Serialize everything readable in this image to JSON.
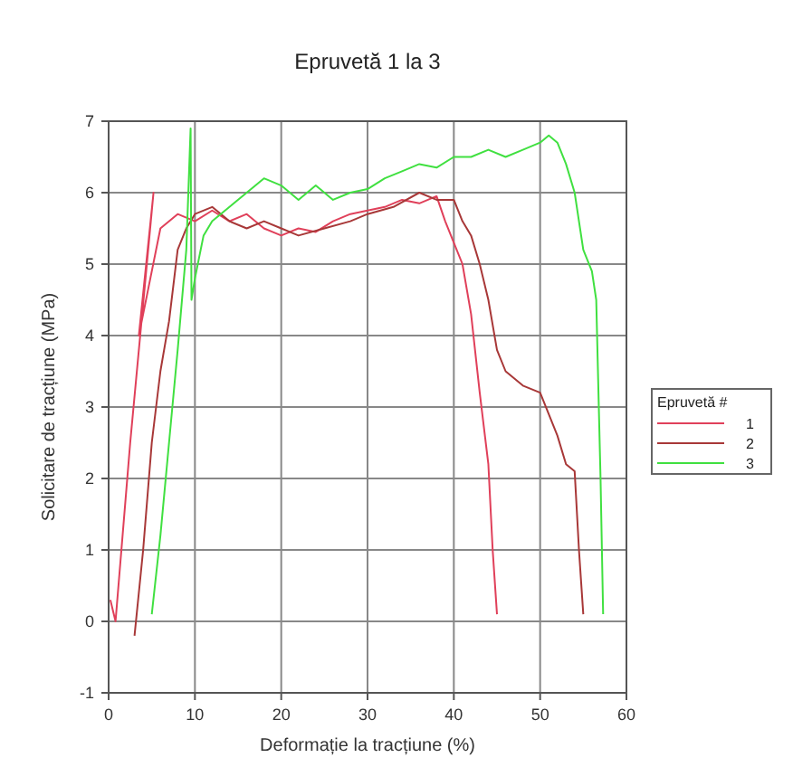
{
  "chart_data": {
    "type": "line",
    "title": "Epruvetă 1 la 3",
    "xlabel": "Deformație la tracțiune (%)",
    "ylabel": "Solicitare de tracțiune (MPa)",
    "legend_title": "Epruvetă #",
    "xlim": [
      0,
      60
    ],
    "ylim": [
      -1,
      7
    ],
    "xticks": [
      0,
      10,
      20,
      30,
      40,
      50,
      60
    ],
    "yticks": [
      -1,
      0,
      1,
      2,
      3,
      4,
      5,
      6,
      7
    ],
    "grid": true,
    "legend": "right",
    "series": [
      {
        "name": "1",
        "color": "#e0405a",
        "x": [
          0.2,
          0.8,
          2.5,
          5.2,
          3.5,
          4.5,
          6,
          8,
          10,
          12,
          14,
          16,
          18,
          20,
          22,
          24,
          26,
          28,
          30,
          32,
          34,
          36,
          38,
          39,
          40,
          41,
          42,
          43,
          44,
          44.5,
          45
        ],
        "values": [
          0.3,
          0,
          2.5,
          6,
          4,
          4.6,
          5.5,
          5.7,
          5.6,
          5.75,
          5.6,
          5.7,
          5.5,
          5.4,
          5.5,
          5.45,
          5.6,
          5.7,
          5.75,
          5.8,
          5.9,
          5.85,
          5.95,
          5.6,
          5.3,
          5,
          4.3,
          3.2,
          2.2,
          1,
          0.1
        ]
      },
      {
        "name": "2",
        "color": "#a83838",
        "x": [
          3,
          4,
          5,
          6,
          7,
          8,
          9,
          10,
          12,
          14,
          16,
          18,
          20,
          22,
          25,
          28,
          30,
          33,
          36,
          38,
          40,
          41,
          42,
          43,
          44,
          45,
          46,
          48,
          50,
          51,
          52,
          53,
          54,
          54.5,
          55
        ],
        "values": [
          -0.2,
          1,
          2.5,
          3.5,
          4.2,
          5.2,
          5.5,
          5.7,
          5.8,
          5.6,
          5.5,
          5.6,
          5.5,
          5.4,
          5.5,
          5.6,
          5.7,
          5.8,
          6,
          5.9,
          5.9,
          5.6,
          5.4,
          5,
          4.5,
          3.8,
          3.5,
          3.3,
          3.2,
          2.9,
          2.6,
          2.2,
          2.1,
          1,
          0.1
        ]
      },
      {
        "name": "3",
        "color": "#40e040",
        "x": [
          5,
          6,
          7,
          8,
          9,
          9.5,
          9.6,
          10,
          11,
          12,
          14,
          16,
          18,
          20,
          22,
          24,
          26,
          28,
          30,
          32,
          34,
          36,
          38,
          40,
          42,
          44,
          46,
          48,
          50,
          51,
          52,
          53,
          54,
          55,
          56,
          56.5,
          57,
          57.3
        ],
        "values": [
          0.1,
          1.2,
          2.5,
          3.8,
          5.2,
          6.9,
          4.5,
          4.8,
          5.4,
          5.6,
          5.8,
          6,
          6.2,
          6.1,
          5.9,
          6.1,
          5.9,
          6,
          6.05,
          6.2,
          6.3,
          6.4,
          6.35,
          6.5,
          6.5,
          6.6,
          6.5,
          6.6,
          6.7,
          6.8,
          6.7,
          6.4,
          6,
          5.2,
          4.9,
          4.5,
          2,
          0.1
        ]
      }
    ]
  }
}
